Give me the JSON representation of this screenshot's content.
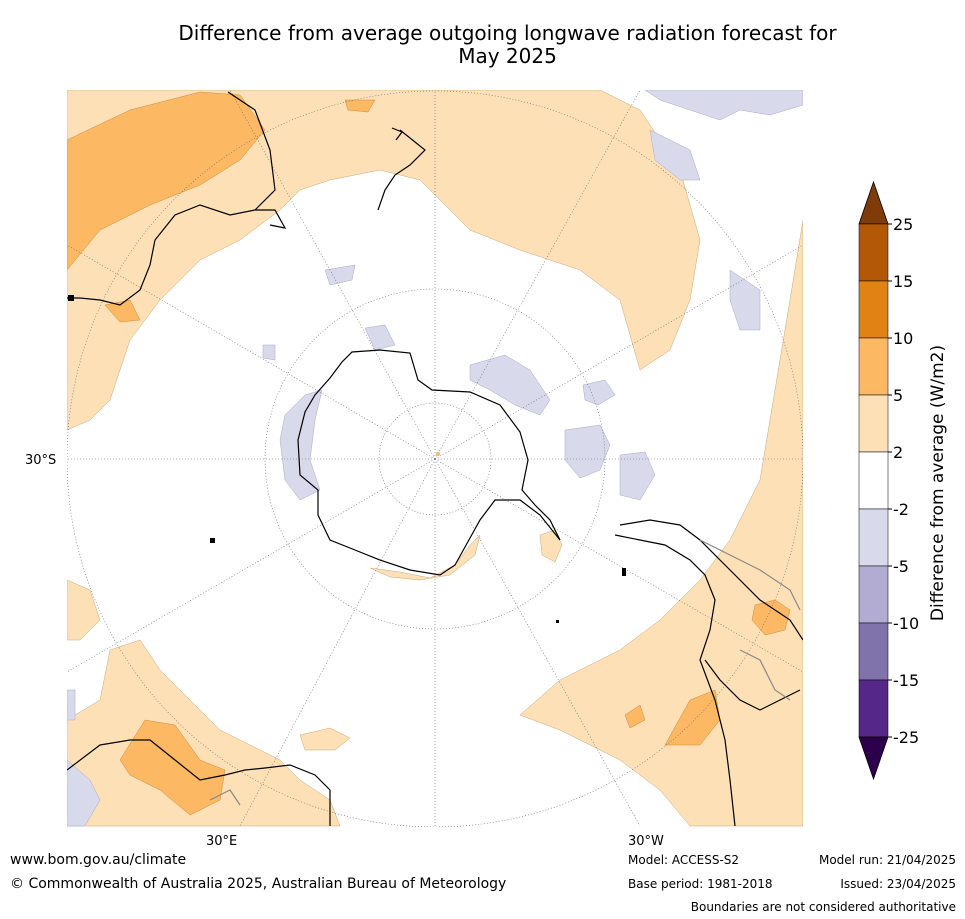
{
  "title_line1": "Difference from average outgoing longwave radiation forecast for",
  "title_line2": "May 2025",
  "map": {
    "projection": "south polar stereographic",
    "lat_labels": [
      "30°S"
    ],
    "lon_labels": [
      "30°E",
      "30°W"
    ],
    "colors": {
      "land_outline": "#000000",
      "border_outline": "#888888",
      "graticule": "#666666"
    }
  },
  "colorbar": {
    "label": "Difference from average (W/m2)",
    "tick_labels": [
      "25",
      "15",
      "10",
      "5",
      "2",
      "-2",
      "-5",
      "-10",
      "-15",
      "-25"
    ],
    "bins": [
      {
        "range": "> 25",
        "color": "#7f3b08"
      },
      {
        "range": "15 to 25",
        "color": "#b35806"
      },
      {
        "range": "10 to 15",
        "color": "#e08214"
      },
      {
        "range": "5 to 10",
        "color": "#fdb863"
      },
      {
        "range": "2 to 5",
        "color": "#fee0b6"
      },
      {
        "range": "-2 to 2",
        "color": "#ffffff"
      },
      {
        "range": "-5 to -2",
        "color": "#d8daeb"
      },
      {
        "range": "-10 to -5",
        "color": "#b2abd2"
      },
      {
        "range": "-15 to -10",
        "color": "#8073ac"
      },
      {
        "range": "-25 to -15",
        "color": "#542788"
      },
      {
        "range": "< -25",
        "color": "#2d004b"
      }
    ]
  },
  "footer": {
    "website": "www.bom.gov.au/climate",
    "copyright": "© Commonwealth of Australia 2025, Australian Bureau of Meteorology",
    "model": "Model: ACCESS-S2",
    "base_period": "Base period: 1981-2018",
    "model_run": "Model run: 21/04/2025",
    "issued": "Issued: 23/04/2025",
    "disclaimer": "Boundaries are not considered authoritative"
  }
}
